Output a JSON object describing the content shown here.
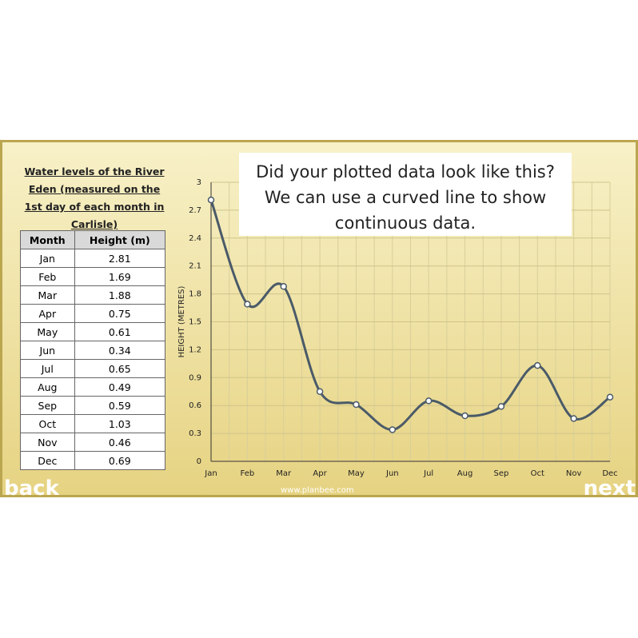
{
  "table": {
    "title": "Water levels of the River Eden (measured on the 1st day of each month in Carlisle)",
    "columns": [
      "Month",
      "Height (m)"
    ],
    "rows": [
      [
        "Jan",
        2.81
      ],
      [
        "Feb",
        1.69
      ],
      [
        "Mar",
        1.88
      ],
      [
        "Apr",
        0.75
      ],
      [
        "May",
        0.61
      ],
      [
        "Jun",
        0.34
      ],
      [
        "Jul",
        0.65
      ],
      [
        "Aug",
        0.49
      ],
      [
        "Sep",
        0.59
      ],
      [
        "Oct",
        1.03
      ],
      [
        "Nov",
        0.46
      ],
      [
        "Dec",
        0.69
      ]
    ]
  },
  "chart_data": {
    "type": "line",
    "callout": "Did your plotted data look like this? We can use a curved line to show continuous data.",
    "y_label": "HEIGHT (METRES)",
    "categories": [
      "Jan",
      "Feb",
      "Mar",
      "Apr",
      "May",
      "Jun",
      "Jul",
      "Aug",
      "Sep",
      "Oct",
      "Nov",
      "Dec"
    ],
    "values": [
      2.81,
      1.69,
      1.88,
      0.75,
      0.61,
      0.34,
      0.65,
      0.49,
      0.59,
      1.03,
      0.46,
      0.69
    ],
    "color": "#4a5a68",
    "smooth": true,
    "grid": true,
    "ylim": [
      0,
      3
    ],
    "yticks": [
      0,
      0.3,
      0.6,
      0.9,
      1.2,
      1.5,
      1.8,
      2.1,
      2.4,
      2.7,
      3
    ]
  },
  "footer": {
    "back": "back",
    "next": "next",
    "website": "www.planbee.com"
  }
}
